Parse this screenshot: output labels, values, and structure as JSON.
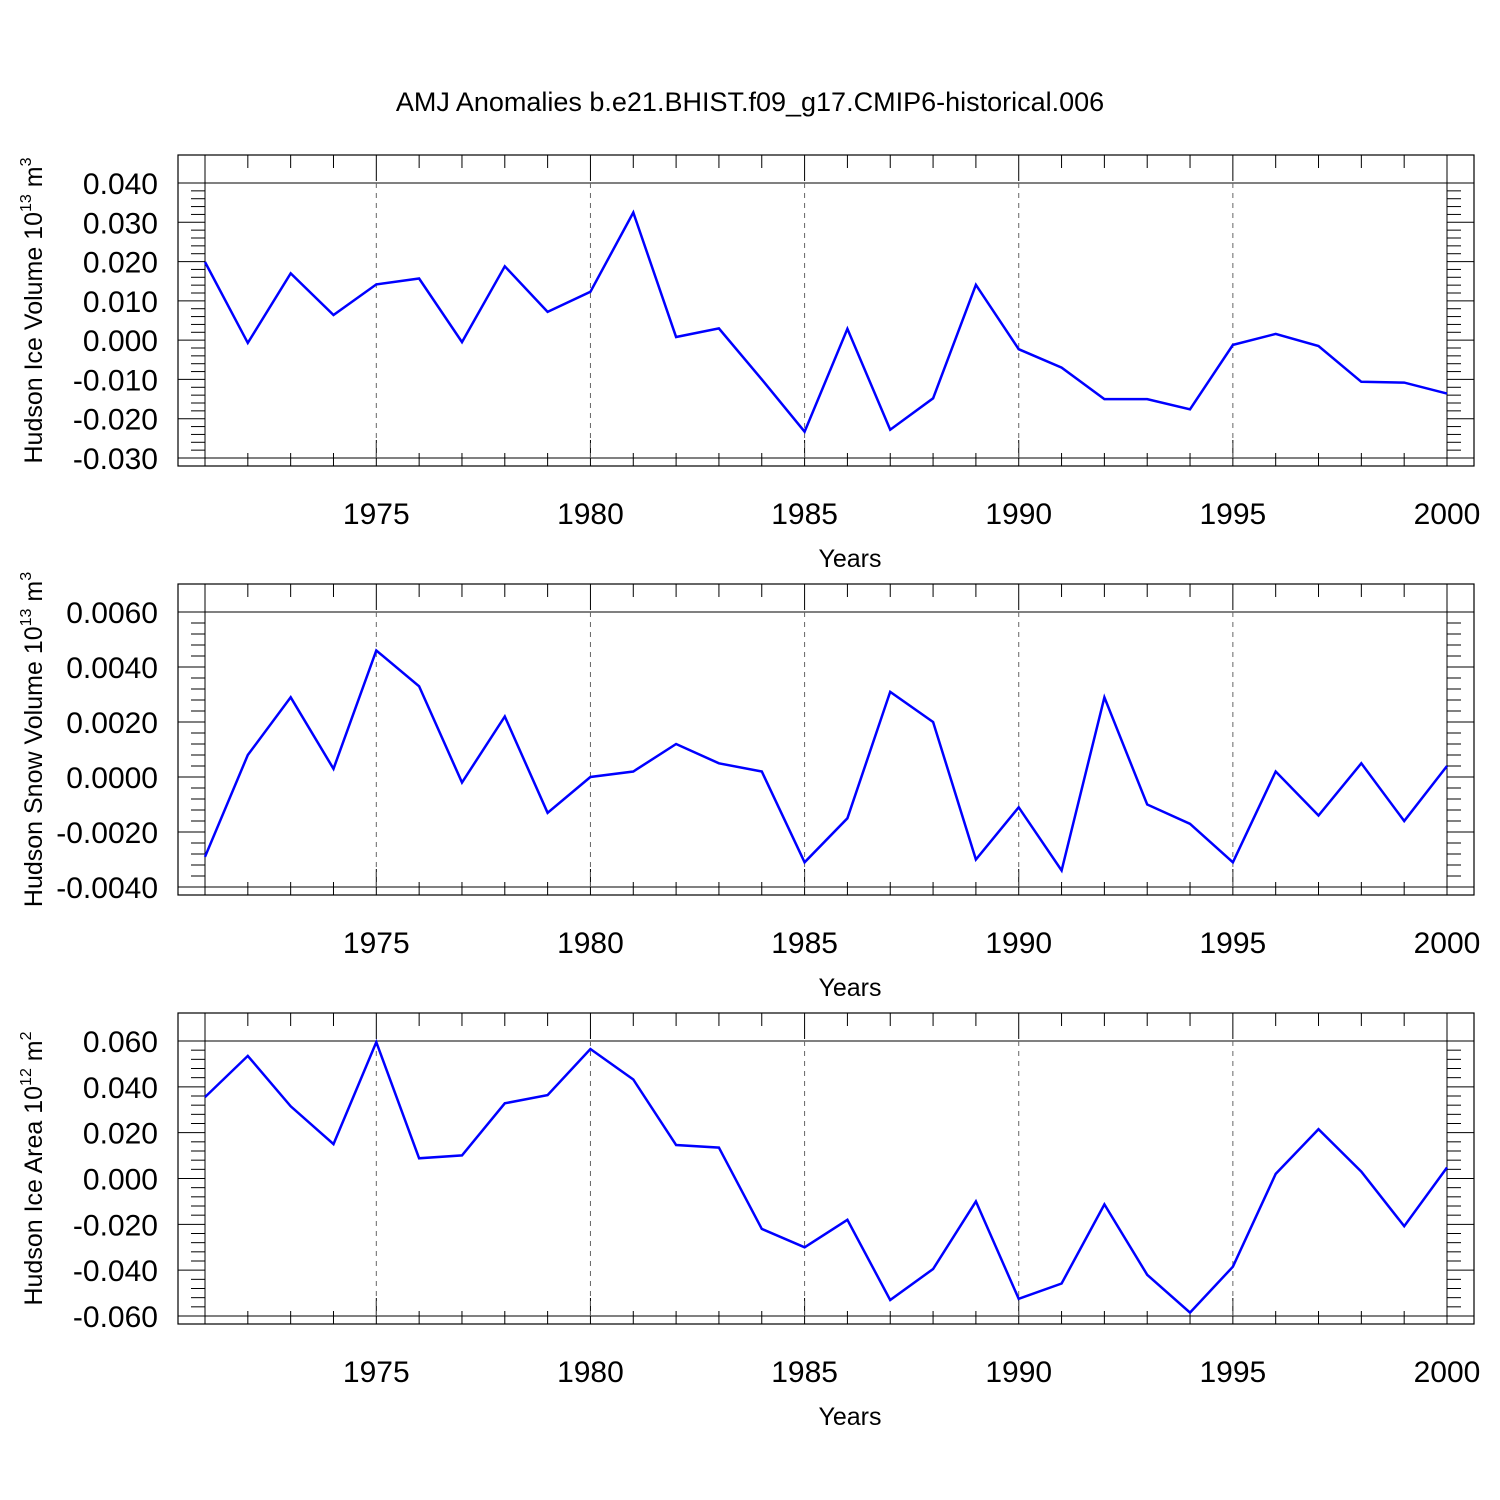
{
  "title": "AMJ Anomalies b.e21.BHIST.f09_g17.CMIP6-historical.006",
  "line_color": "#0000ff",
  "chart_data": [
    {
      "type": "line",
      "xlabel": "Years",
      "ylabel": {
        "base": "Hudson Ice Volume 10",
        "exponent": "13",
        "unit": " m",
        "unit_exponent": "3"
      },
      "xlim": [
        1971,
        2000
      ],
      "ylim": [
        -0.03,
        0.04
      ],
      "xticks": [
        "1975",
        "1980",
        "1985",
        "1990",
        "1995",
        "2000"
      ],
      "yticks": [
        "-0.030",
        "-0.020",
        "-0.010",
        "0.000",
        "0.010",
        "0.020",
        "0.030",
        "0.040"
      ],
      "x": [
        1971,
        1972,
        1973,
        1974,
        1975,
        1976,
        1977,
        1978,
        1979,
        1980,
        1981,
        1982,
        1983,
        1984,
        1985,
        1986,
        1987,
        1988,
        1989,
        1990,
        1991,
        1992,
        1993,
        1994,
        1995,
        1996,
        1997,
        1998,
        1999,
        2000
      ],
      "values": [
        0.0199,
        -0.0007,
        0.017,
        0.0064,
        0.0142,
        0.0157,
        -0.0005,
        0.0188,
        0.0072,
        0.0123,
        0.0325,
        0.0008,
        0.003,
        -0.01,
        -0.0233,
        0.0029,
        -0.0228,
        -0.0148,
        0.0141,
        -0.0023,
        -0.007,
        -0.015,
        -0.015,
        -0.0176,
        -0.0012,
        0.0016,
        -0.0015,
        -0.0106,
        -0.0108,
        -0.0136
      ]
    },
    {
      "type": "line",
      "xlabel": "Years",
      "ylabel": {
        "base": "Hudson Snow Volume 10",
        "exponent": "13",
        "unit": " m",
        "unit_exponent": "3"
      },
      "xlim": [
        1971,
        2000
      ],
      "ylim": [
        -0.004,
        0.006
      ],
      "xticks": [
        "1975",
        "1980",
        "1985",
        "1990",
        "1995",
        "2000"
      ],
      "yticks": [
        "-0.0040",
        "-0.0020",
        "0.0000",
        "0.0020",
        "0.0040",
        "0.0060"
      ],
      "x": [
        1971,
        1972,
        1973,
        1974,
        1975,
        1976,
        1977,
        1978,
        1979,
        1980,
        1981,
        1982,
        1983,
        1984,
        1985,
        1986,
        1987,
        1988,
        1989,
        1990,
        1991,
        1992,
        1993,
        1994,
        1995,
        1996,
        1997,
        1998,
        1999,
        2000
      ],
      "values": [
        -0.0029,
        0.0008,
        0.0029,
        0.0003,
        0.0046,
        0.0033,
        -0.0002,
        0.0022,
        -0.0013,
        0.0,
        0.0002,
        0.0012,
        0.0005,
        0.0002,
        -0.0031,
        -0.0015,
        0.0031,
        0.002,
        -0.003,
        -0.0011,
        -0.0034,
        0.0029,
        -0.001,
        -0.0017,
        -0.0031,
        0.0002,
        -0.0014,
        0.0005,
        -0.0016,
        0.0004
      ]
    },
    {
      "type": "line",
      "xlabel": "Years",
      "ylabel": {
        "base": "Hudson Ice Area 10",
        "exponent": "12",
        "unit": " m",
        "unit_exponent": "2"
      },
      "xlim": [
        1971,
        2000
      ],
      "ylim": [
        -0.06,
        0.06
      ],
      "xticks": [
        "1975",
        "1980",
        "1985",
        "1990",
        "1995",
        "2000"
      ],
      "yticks": [
        "-0.060",
        "-0.040",
        "-0.020",
        "0.000",
        "0.020",
        "0.040",
        "0.060"
      ],
      "x": [
        1971,
        1972,
        1973,
        1974,
        1975,
        1976,
        1977,
        1978,
        1979,
        1980,
        1981,
        1982,
        1983,
        1984,
        1985,
        1986,
        1987,
        1988,
        1989,
        1990,
        1991,
        1992,
        1993,
        1994,
        1995,
        1996,
        1997,
        1998,
        1999,
        2000
      ],
      "values": [
        0.0355,
        0.0535,
        0.0315,
        0.015,
        0.0595,
        0.0088,
        0.0101,
        0.0328,
        0.0364,
        0.0565,
        0.0432,
        0.0146,
        0.0135,
        -0.022,
        -0.03,
        -0.018,
        -0.053,
        -0.0395,
        -0.01,
        -0.0525,
        -0.0458,
        -0.0113,
        -0.042,
        -0.0585,
        -0.0385,
        0.002,
        0.0215,
        0.003,
        -0.0208,
        0.0048
      ]
    }
  ]
}
